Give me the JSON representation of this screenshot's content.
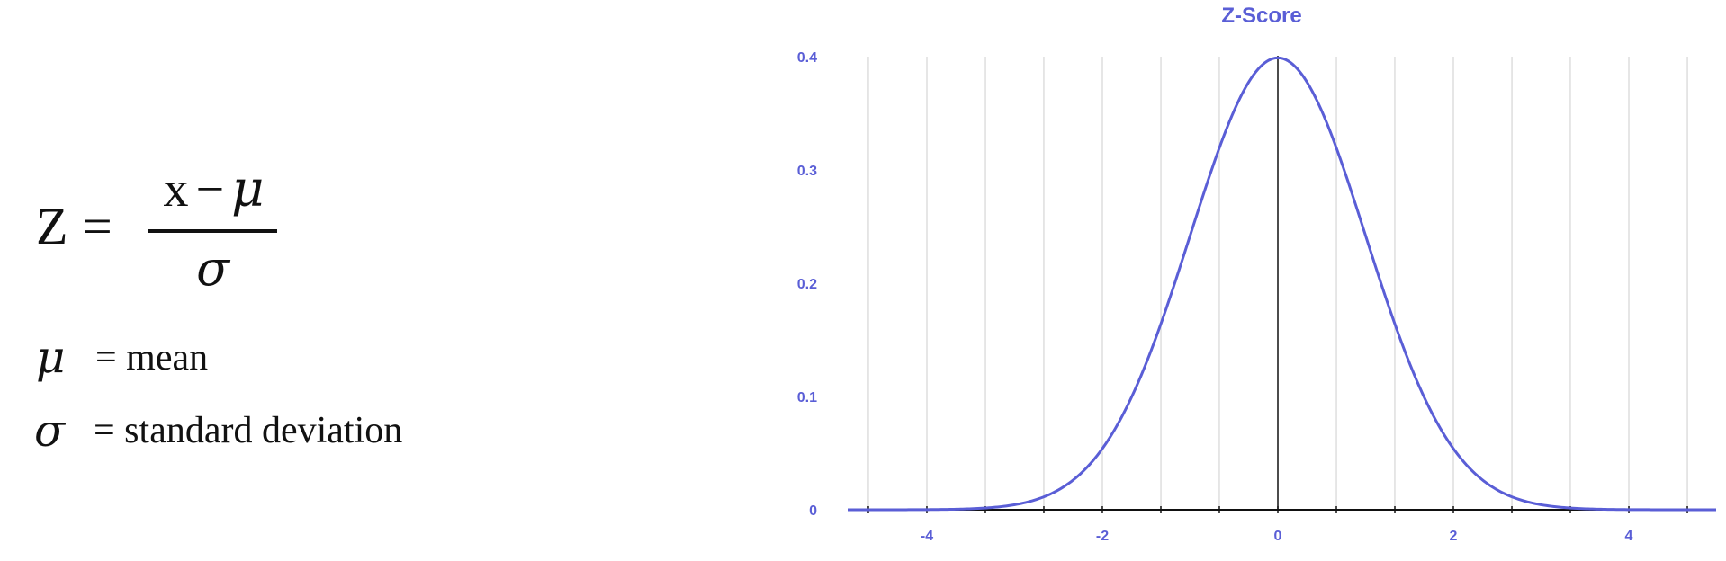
{
  "formula": {
    "z": "Z",
    "equals": "=",
    "numerator_x": "x",
    "numerator_minus": "−",
    "numerator_mu": "μ",
    "denominator": "σ"
  },
  "legend": [
    {
      "symbol": "μ",
      "text": "= mean"
    },
    {
      "symbol": "σ",
      "text": "= standard deviation"
    }
  ],
  "colors": {
    "curve": "#5a5ed6",
    "labels": "#5a5ed6",
    "grid": "#d6d6d6",
    "axis": "#111111"
  },
  "chart_data": {
    "type": "line",
    "title": "Z-Score",
    "xlabel": "",
    "ylabel": "",
    "xlim": [
      -5,
      5
    ],
    "ylim": [
      0,
      0.4
    ],
    "x_ticks": [
      -4,
      -2,
      0,
      2,
      4
    ],
    "x_tick_labels": [
      "-4",
      "-2",
      "0",
      "2",
      "4"
    ],
    "y_ticks": [
      0,
      0.1,
      0.2,
      0.3,
      0.4
    ],
    "y_tick_labels": [
      "0",
      "0.1",
      "0.2",
      "0.3",
      "0.4"
    ],
    "grid": true,
    "series": [
      {
        "x": [
          -5,
          -4.5,
          -4,
          -3.5,
          -3,
          -2.75,
          -2.5,
          -2.25,
          -2,
          -1.75,
          -1.5,
          -1.25,
          -1,
          -0.75,
          -0.5,
          -0.25,
          0,
          0.25,
          0.5,
          0.75,
          1,
          1.25,
          1.5,
          1.75,
          2,
          2.25,
          2.5,
          2.75,
          3,
          3.5,
          4,
          4.5,
          5
        ],
        "y": [
          1.5e-06,
          1.6e-05,
          0.000134,
          0.000873,
          0.004432,
          0.009094,
          0.017528,
          0.03174,
          0.053991,
          0.086277,
          0.129518,
          0.182649,
          0.241971,
          0.301137,
          0.352065,
          0.386668,
          0.398942,
          0.386668,
          0.352065,
          0.301137,
          0.241971,
          0.182649,
          0.129518,
          0.086277,
          0.053991,
          0.03174,
          0.017528,
          0.009094,
          0.004432,
          0.000873,
          0.000134,
          1.6e-05,
          1.5e-06
        ]
      }
    ]
  }
}
